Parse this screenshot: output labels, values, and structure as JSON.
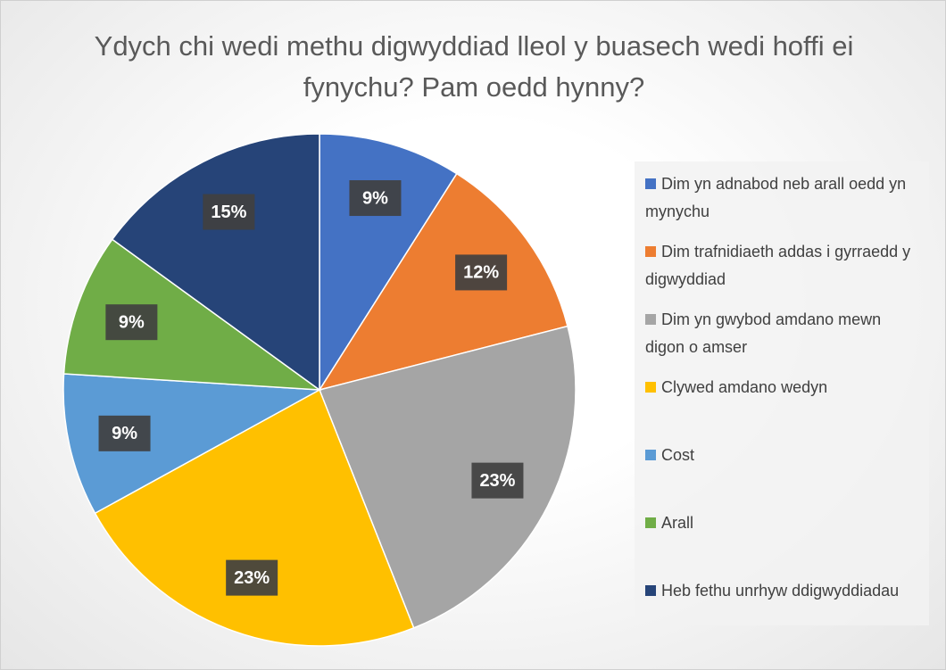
{
  "chart_data": {
    "type": "pie",
    "title": "Ydych chi wedi methu digwyddiad lleol y buasech wedi hoffi ei fynychu? Pam oedd hynny?",
    "categories": [
      "Dim yn adnabod neb arall oedd yn mynychu",
      "Dim trafnidiaeth addas i gyrraedd y digwyddiad",
      "Dim yn gwybod amdano mewn digon o amser",
      "Clywed amdano wedyn",
      "Cost",
      "Arall",
      "Heb fethu unrhyw ddigwyddiadau"
    ],
    "values": [
      9,
      12,
      23,
      23,
      9,
      9,
      15
    ],
    "value_labels": [
      "9%",
      "12%",
      "23%",
      "23%",
      "9%",
      "9%",
      "15%"
    ],
    "colors": [
      "#4472c4",
      "#ed7d31",
      "#a5a5a5",
      "#ffc000",
      "#5b9bd5",
      "#70ad47",
      "#264478"
    ],
    "legend": "right"
  }
}
